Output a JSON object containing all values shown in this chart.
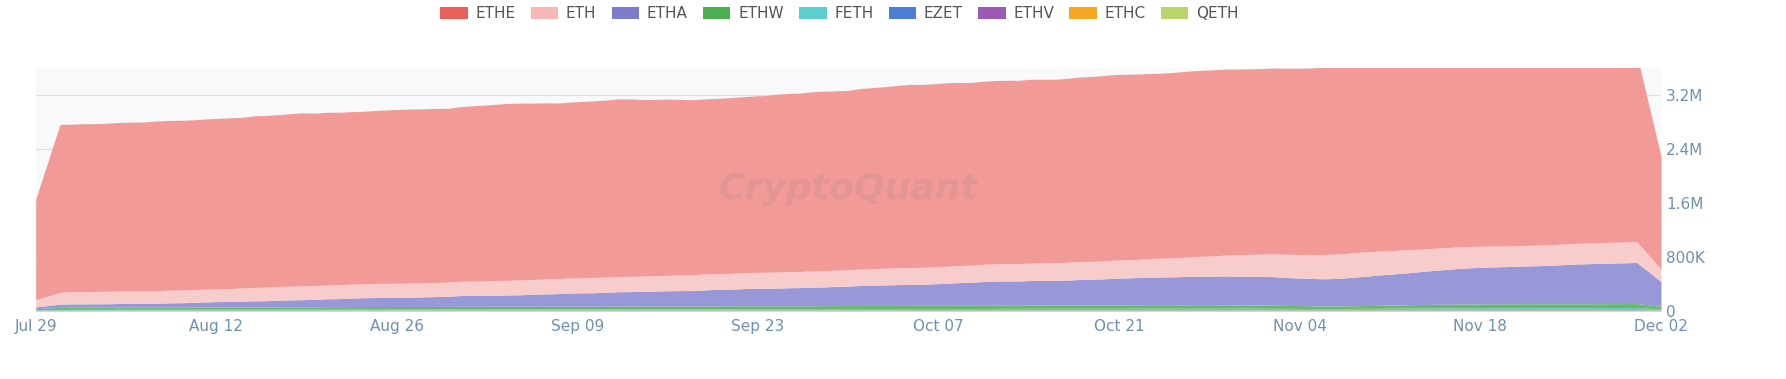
{
  "legend_labels": [
    "ETHE",
    "ETH",
    "ETHA",
    "ETHW",
    "FETH",
    "EZET",
    "ETHV",
    "ETHC",
    "QETH"
  ],
  "legend_colors": [
    "#e8605a",
    "#f5b8b5",
    "#7b7dc8",
    "#4caf50",
    "#5bcfcf",
    "#4a7fd4",
    "#9b59b6",
    "#f5a623",
    "#b8d46a"
  ],
  "background_color": "#ffffff",
  "plot_bg_color": "#f8f9fa",
  "grid_color": "#e0e0e0",
  "ylim": [
    0,
    3600000
  ],
  "yticks": [
    0,
    800000,
    1600000,
    2400000,
    3200000
  ],
  "ytick_labels": [
    "0",
    "800K",
    "1.6M",
    "2.4M",
    "3.2M"
  ],
  "x_labels": [
    "Jul 29",
    "Aug 12",
    "Aug 26",
    "Sep 09",
    "Sep 23",
    "Oct 07",
    "Oct 21",
    "Nov 04",
    "Nov 18",
    "Dec 02"
  ],
  "watermark": "CryptoQuant",
  "n_points": 135,
  "stack_order": [
    "EZET",
    "ETHV",
    "ETHC",
    "QETH",
    "FETH",
    "ETHW",
    "ETHA",
    "ETH",
    "ETHE"
  ],
  "stack_colors": {
    "ETHE": "#f29a97",
    "ETH": "#f7cccb",
    "ETHA": "#9898d8",
    "ETHW": "#66bb6a",
    "FETH": "#5bcfcf",
    "EZET": "#4a7fd4",
    "ETHV": "#aa66cc",
    "ETHC": "#f5a623",
    "QETH": "#c8e07a"
  }
}
